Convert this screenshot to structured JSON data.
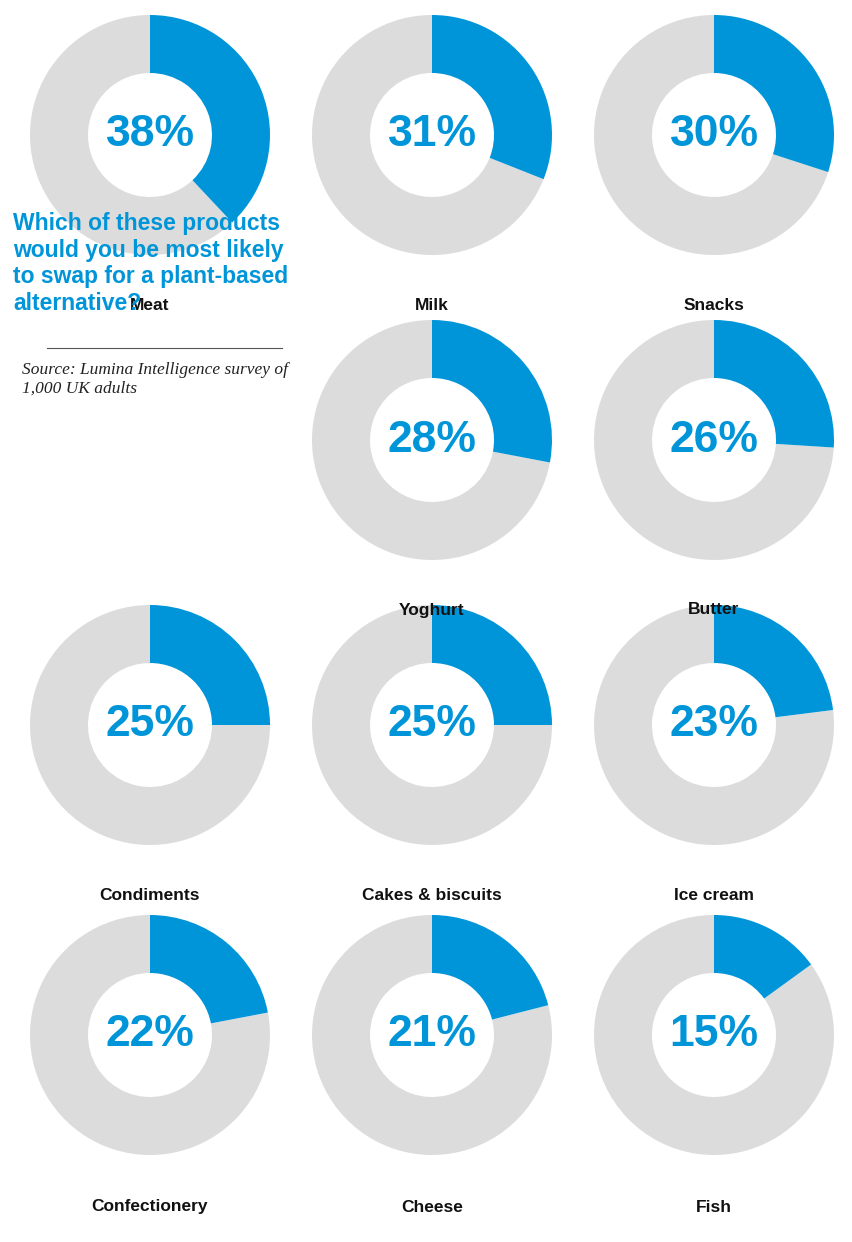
{
  "chart_data": {
    "type": "donut",
    "title": "Which of these products would you be most likely to swap for a plant-based alternative?",
    "subtitle": "Source: Lumina Intelligence survey of 1,000 UK adults",
    "categories": [
      "Meat",
      "Milk",
      "Snacks",
      "Yoghurt",
      "Butter",
      "Condiments",
      "Cakes & biscuits",
      "Ice cream",
      "Confectionery",
      "Cheese",
      "Fish"
    ],
    "values": [
      38,
      31,
      30,
      28,
      26,
      25,
      25,
      23,
      22,
      21,
      15
    ],
    "value_labels": [
      "38%",
      "31%",
      "30%",
      "28%",
      "26%",
      "25%",
      "25%",
      "23%",
      "22%",
      "21%",
      "15%"
    ],
    "data_labels": true,
    "ylim": [
      0,
      100
    ],
    "color": "#0095d9"
  }
}
